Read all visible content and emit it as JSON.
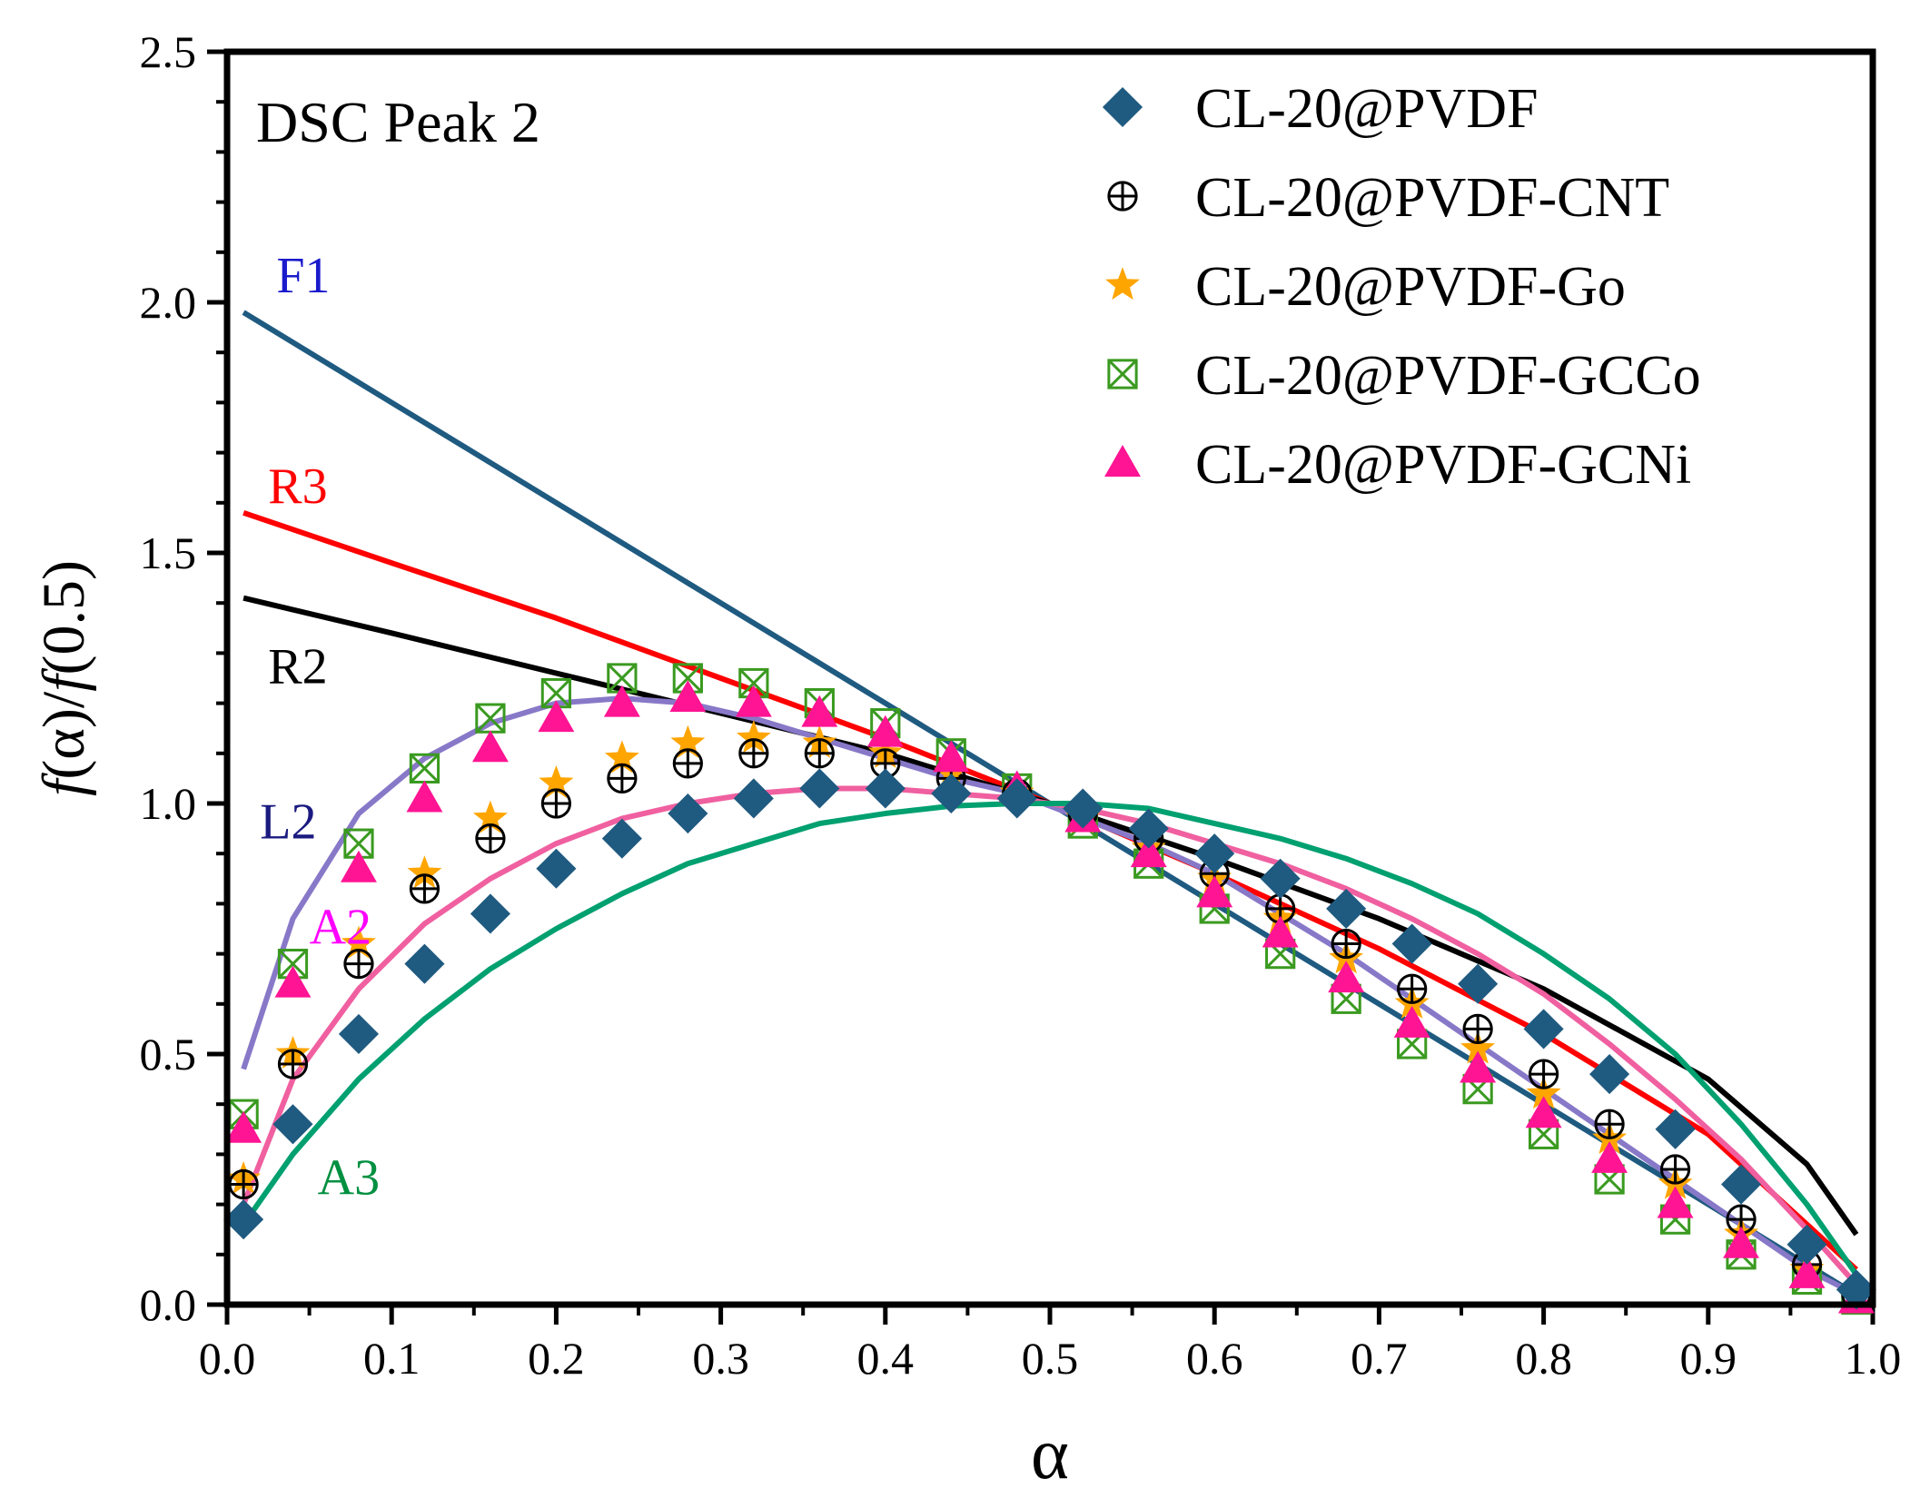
{
  "chart_data": {
    "type": "line+scatter",
    "title": "",
    "annotation": "DSC Peak 2",
    "xlabel": "α",
    "ylabel_parts": [
      "f",
      "(α)/",
      "f",
      "(0.5)"
    ],
    "xlim": [
      0.0,
      1.0
    ],
    "ylim": [
      0.0,
      2.5
    ],
    "xticks": [
      "0.0",
      "0.1",
      "0.2",
      "0.3",
      "0.4",
      "0.5",
      "0.6",
      "0.7",
      "0.8",
      "0.9",
      "1.0"
    ],
    "yticks": [
      "0.0",
      "0.5",
      "1.0",
      "1.5",
      "2.0",
      "2.5"
    ],
    "legend_position": "top-right",
    "model_curves": [
      {
        "name": "F1",
        "label_color": "#1a1acc",
        "color": "#1f5a80",
        "label_pos": [
          0.03,
          2.02
        ],
        "x": [
          0.01,
          0.1,
          0.2,
          0.3,
          0.4,
          0.5,
          0.6,
          0.7,
          0.8,
          0.9,
          0.99
        ],
        "y": [
          1.98,
          1.8,
          1.6,
          1.4,
          1.2,
          1.0,
          0.8,
          0.6,
          0.4,
          0.2,
          0.02
        ]
      },
      {
        "name": "R3",
        "label_color": "#ff0000",
        "color": "#ff0000",
        "label_pos": [
          0.025,
          1.6
        ],
        "x": [
          0.01,
          0.1,
          0.2,
          0.3,
          0.4,
          0.5,
          0.6,
          0.7,
          0.8,
          0.9,
          0.99
        ],
        "y": [
          1.58,
          1.48,
          1.37,
          1.25,
          1.13,
          1.0,
          0.86,
          0.71,
          0.54,
          0.34,
          0.07
        ]
      },
      {
        "name": "R2",
        "label_color": "#000000",
        "color": "#000000",
        "label_pos": [
          0.025,
          1.24
        ],
        "x": [
          0.01,
          0.1,
          0.2,
          0.3,
          0.4,
          0.5,
          0.6,
          0.7,
          0.8,
          0.9,
          0.96,
          0.99
        ],
        "y": [
          1.41,
          1.34,
          1.26,
          1.18,
          1.1,
          1.0,
          0.89,
          0.77,
          0.63,
          0.45,
          0.28,
          0.14
        ]
      },
      {
        "name": "L2",
        "label_color": "#1a1a80",
        "color": "#8878c8",
        "label_pos": [
          0.02,
          0.93
        ],
        "x": [
          0.01,
          0.04,
          0.08,
          0.12,
          0.16,
          0.2,
          0.24,
          0.28,
          0.32,
          0.36,
          0.4,
          0.44,
          0.48,
          0.52,
          0.56,
          0.6,
          0.64,
          0.68,
          0.72,
          0.76,
          0.8,
          0.84,
          0.88,
          0.92,
          0.96,
          0.99
        ],
        "y": [
          0.47,
          0.77,
          0.98,
          1.09,
          1.16,
          1.2,
          1.21,
          1.2,
          1.17,
          1.13,
          1.09,
          1.05,
          1.02,
          0.97,
          0.92,
          0.86,
          0.78,
          0.7,
          0.61,
          0.52,
          0.43,
          0.34,
          0.25,
          0.16,
          0.07,
          0.02
        ]
      },
      {
        "name": "A2",
        "label_color": "#ff00ff",
        "color": "#f060a0",
        "label_pos": [
          0.05,
          0.72
        ],
        "x": [
          0.01,
          0.04,
          0.08,
          0.12,
          0.16,
          0.2,
          0.24,
          0.28,
          0.32,
          0.36,
          0.4,
          0.44,
          0.48,
          0.52,
          0.56,
          0.6,
          0.64,
          0.68,
          0.72,
          0.76,
          0.8,
          0.84,
          0.88,
          0.92,
          0.96,
          0.99
        ],
        "y": [
          0.2,
          0.45,
          0.63,
          0.76,
          0.85,
          0.92,
          0.97,
          1.0,
          1.02,
          1.03,
          1.03,
          1.02,
          1.01,
          0.99,
          0.96,
          0.92,
          0.88,
          0.83,
          0.77,
          0.7,
          0.62,
          0.52,
          0.41,
          0.29,
          0.15,
          0.04
        ]
      },
      {
        "name": "A3",
        "label_color": "#009040",
        "color": "#00a070",
        "label_pos": [
          0.055,
          0.22
        ],
        "x": [
          0.01,
          0.04,
          0.08,
          0.12,
          0.16,
          0.2,
          0.24,
          0.28,
          0.32,
          0.36,
          0.4,
          0.44,
          0.48,
          0.52,
          0.56,
          0.6,
          0.64,
          0.68,
          0.72,
          0.76,
          0.8,
          0.84,
          0.88,
          0.92,
          0.96,
          0.99
        ],
        "y": [
          0.16,
          0.3,
          0.45,
          0.57,
          0.67,
          0.75,
          0.82,
          0.88,
          0.92,
          0.96,
          0.98,
          0.995,
          1.0,
          1.0,
          0.99,
          0.96,
          0.93,
          0.89,
          0.84,
          0.78,
          0.7,
          0.61,
          0.5,
          0.36,
          0.2,
          0.06
        ]
      }
    ],
    "series": [
      {
        "name": "CL-20@PVDF",
        "marker": "diamond",
        "color": "#1f5a80",
        "x": [
          0.01,
          0.04,
          0.08,
          0.12,
          0.16,
          0.2,
          0.24,
          0.28,
          0.32,
          0.36,
          0.4,
          0.44,
          0.48,
          0.52,
          0.56,
          0.6,
          0.64,
          0.68,
          0.72,
          0.76,
          0.8,
          0.84,
          0.88,
          0.92,
          0.96,
          0.99
        ],
        "y": [
          0.17,
          0.36,
          0.54,
          0.68,
          0.78,
          0.87,
          0.93,
          0.98,
          1.01,
          1.03,
          1.03,
          1.02,
          1.01,
          0.99,
          0.95,
          0.9,
          0.85,
          0.79,
          0.72,
          0.64,
          0.55,
          0.46,
          0.35,
          0.24,
          0.12,
          0.03
        ]
      },
      {
        "name": "CL-20@PVDF-CNT",
        "marker": "circle-plus",
        "color": "#000000",
        "x": [
          0.01,
          0.04,
          0.08,
          0.12,
          0.16,
          0.2,
          0.24,
          0.28,
          0.32,
          0.36,
          0.4,
          0.44,
          0.48,
          0.52,
          0.56,
          0.6,
          0.64,
          0.68,
          0.72,
          0.76,
          0.8,
          0.84,
          0.88,
          0.92,
          0.96,
          0.99
        ],
        "y": [
          0.24,
          0.48,
          0.68,
          0.83,
          0.93,
          1.0,
          1.05,
          1.08,
          1.1,
          1.1,
          1.08,
          1.05,
          1.02,
          0.98,
          0.93,
          0.86,
          0.79,
          0.72,
          0.63,
          0.55,
          0.46,
          0.36,
          0.27,
          0.17,
          0.08,
          0.02
        ]
      },
      {
        "name": "CL-20@PVDF-Go",
        "marker": "star",
        "color": "#ffa500",
        "x": [
          0.01,
          0.04,
          0.08,
          0.12,
          0.16,
          0.2,
          0.24,
          0.28,
          0.32,
          0.36,
          0.4,
          0.44,
          0.48,
          0.52,
          0.56,
          0.6,
          0.64,
          0.68,
          0.72,
          0.76,
          0.8,
          0.84,
          0.88,
          0.92,
          0.96,
          0.99
        ],
        "y": [
          0.25,
          0.5,
          0.72,
          0.86,
          0.97,
          1.04,
          1.09,
          1.12,
          1.13,
          1.12,
          1.1,
          1.06,
          1.02,
          0.97,
          0.91,
          0.85,
          0.77,
          0.69,
          0.6,
          0.51,
          0.42,
          0.33,
          0.24,
          0.14,
          0.07,
          0.02
        ]
      },
      {
        "name": "CL-20@PVDF-GCCo",
        "marker": "square-x",
        "color": "#3a9a20",
        "x": [
          0.01,
          0.04,
          0.08,
          0.12,
          0.16,
          0.2,
          0.24,
          0.28,
          0.32,
          0.36,
          0.4,
          0.44,
          0.48,
          0.52,
          0.56,
          0.6,
          0.64,
          0.68,
          0.72,
          0.76,
          0.8,
          0.84,
          0.88,
          0.92,
          0.96,
          0.99
        ],
        "y": [
          0.38,
          0.68,
          0.92,
          1.07,
          1.17,
          1.22,
          1.25,
          1.25,
          1.24,
          1.2,
          1.16,
          1.1,
          1.03,
          0.96,
          0.88,
          0.79,
          0.7,
          0.61,
          0.52,
          0.43,
          0.34,
          0.25,
          0.17,
          0.1,
          0.05,
          0.01
        ]
      },
      {
        "name": "CL-20@PVDF-GCNi",
        "marker": "triangle",
        "color": "#ff1493",
        "x": [
          0.01,
          0.04,
          0.08,
          0.12,
          0.16,
          0.2,
          0.24,
          0.28,
          0.32,
          0.36,
          0.4,
          0.44,
          0.48,
          0.52,
          0.56,
          0.6,
          0.64,
          0.68,
          0.72,
          0.76,
          0.8,
          0.84,
          0.88,
          0.92,
          0.96,
          0.99
        ],
        "y": [
          0.35,
          0.64,
          0.87,
          1.01,
          1.11,
          1.17,
          1.2,
          1.21,
          1.2,
          1.18,
          1.14,
          1.09,
          1.03,
          0.97,
          0.9,
          0.82,
          0.74,
          0.65,
          0.56,
          0.47,
          0.38,
          0.29,
          0.2,
          0.12,
          0.06,
          0.01
        ]
      }
    ]
  }
}
